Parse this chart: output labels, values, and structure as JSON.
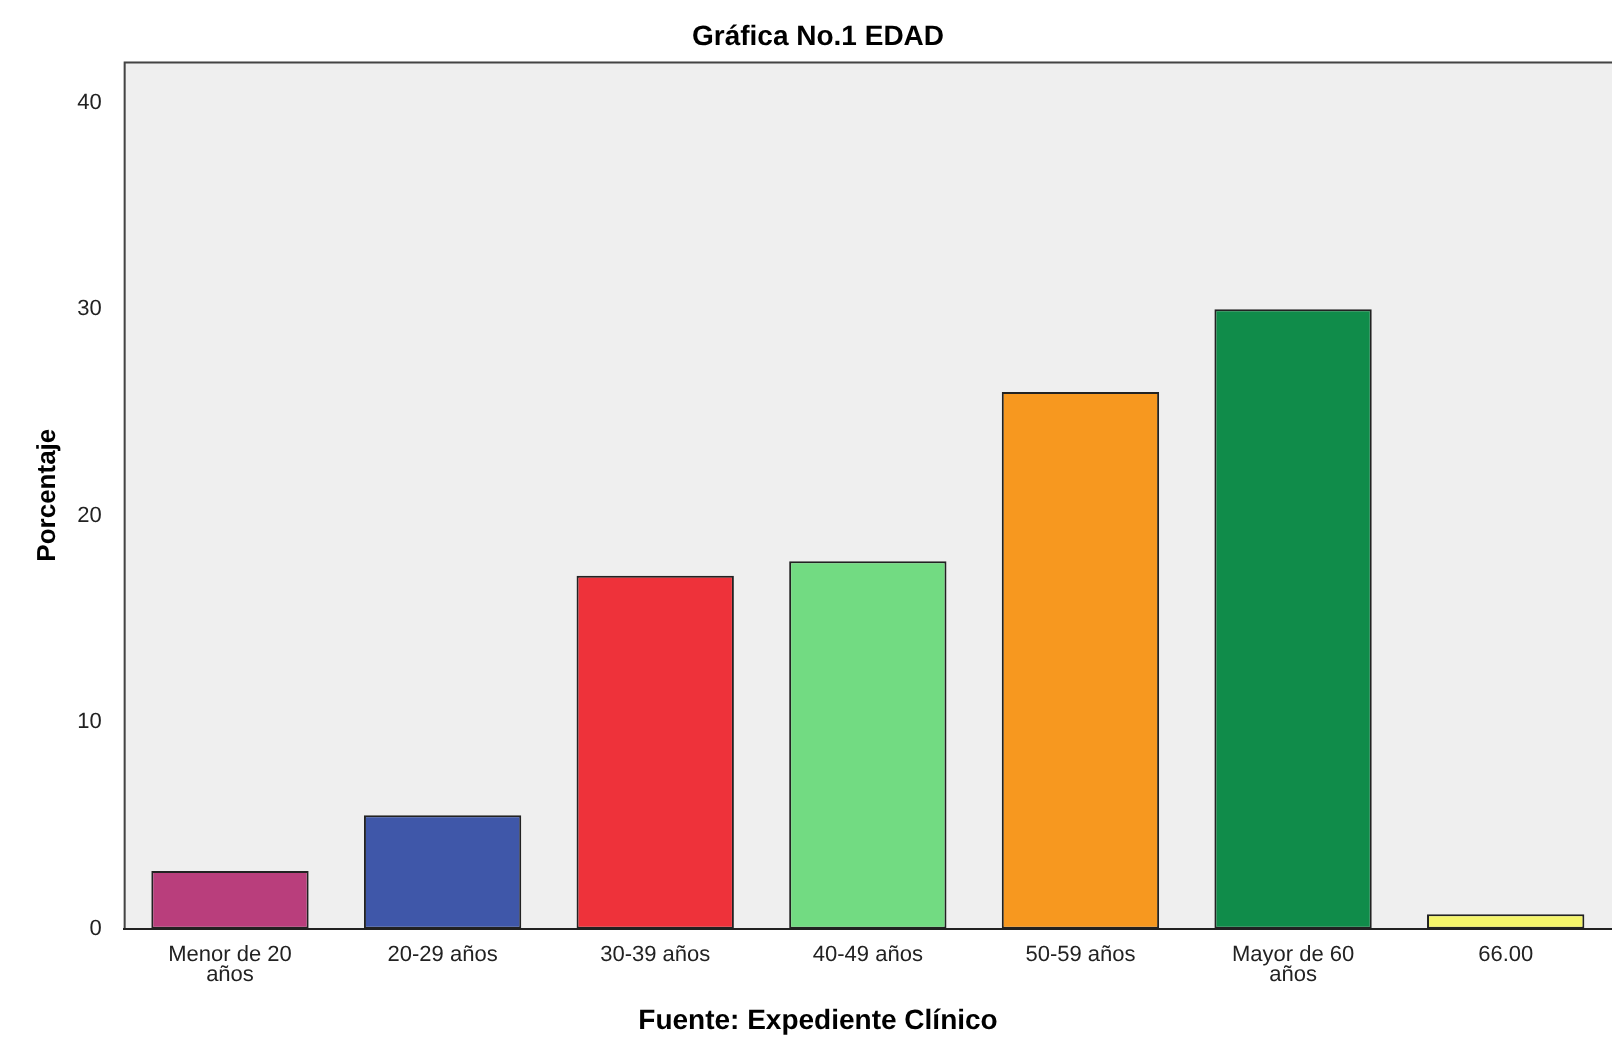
{
  "chart_data": {
    "type": "bar",
    "title": "Gráfica No.1 EDAD",
    "ylabel": "Porcentaje",
    "annotations": [
      "Fuente: Expediente Clínico"
    ],
    "categories": [
      "Menor de 20 años",
      "20-29 años",
      "30-39 años",
      "40-49 años",
      "50-59 años",
      "Mayor de 60 años",
      "66.00"
    ],
    "values": [
      2.8,
      5.5,
      17.1,
      17.8,
      26.0,
      30.0,
      0.7
    ],
    "colors": [
      "#b93e7c",
      "#3f57a9",
      "#ee323a",
      "#72db82",
      "#f7981f",
      "#108c4a",
      "#f4f46a"
    ],
    "ylim": [
      0,
      42
    ],
    "yticks": [
      0,
      10,
      20,
      30,
      40
    ],
    "grid": false,
    "legend": false
  }
}
